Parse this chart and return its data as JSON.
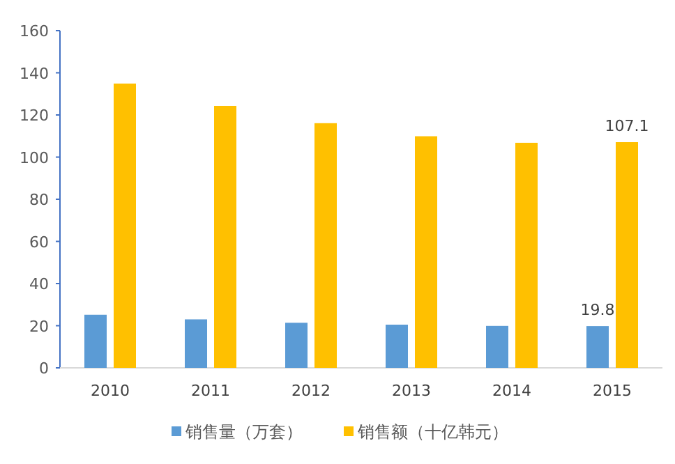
{
  "chart_data": {
    "type": "bar",
    "categories": [
      "2010",
      "2011",
      "2012",
      "2013",
      "2014",
      "2015"
    ],
    "series": [
      {
        "name": "销售量（万套）",
        "color": "#5b9bd5",
        "values": [
          25.2,
          23.0,
          21.4,
          20.5,
          19.9,
          19.8
        ],
        "value_labels": [
          null,
          null,
          null,
          null,
          null,
          "19.8"
        ]
      },
      {
        "name": "销售额（十亿韩元）",
        "color": "#ffc000",
        "values": [
          134.9,
          124.3,
          116.1,
          109.9,
          106.8,
          107.1
        ],
        "value_labels": [
          null,
          null,
          null,
          null,
          null,
          "107.1"
        ]
      }
    ],
    "ylim": [
      0,
      160
    ],
    "yticks": [
      0,
      20,
      40,
      60,
      80,
      100,
      120,
      140,
      160
    ],
    "grid": false,
    "legend": "bottom"
  }
}
